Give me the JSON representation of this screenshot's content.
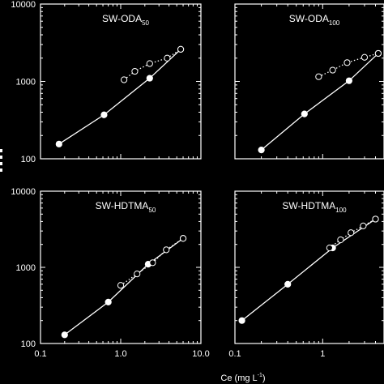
{
  "chart_data": {
    "type": "scatter",
    "xlabel": "Ce (mg L",
    "xlabel_sup": "-1",
    "xlabel_close": ")",
    "ylabel": "",
    "log_x": true,
    "log_y": true,
    "panels": [
      {
        "title": "SW-ODA",
        "title_sub": "50",
        "xlim": [
          0.1,
          10
        ],
        "ylim": [
          100,
          10000
        ],
        "y_ticks": [
          "10000",
          "1000",
          "100"
        ],
        "x_ticks": [],
        "series": [
          {
            "marker": "filled",
            "line": "solid",
            "points": [
              [
                0.17,
                155
              ],
              [
                0.62,
                370
              ],
              [
                2.3,
                1100
              ],
              [
                5.6,
                2600
              ]
            ]
          },
          {
            "marker": "open",
            "line": "dotted",
            "points": [
              [
                1.1,
                1050
              ],
              [
                1.5,
                1350
              ],
              [
                2.3,
                1700
              ],
              [
                3.8,
                2000
              ],
              [
                5.6,
                2600
              ]
            ]
          }
        ]
      },
      {
        "title": "SW-ODA",
        "title_sub": "100",
        "xlim": [
          0.1,
          5
        ],
        "ylim": [
          100,
          10000
        ],
        "y_ticks": [],
        "x_ticks": [],
        "series": [
          {
            "marker": "filled",
            "line": "solid",
            "points": [
              [
                0.2,
                130
              ],
              [
                0.62,
                380
              ],
              [
                2.0,
                1020
              ],
              [
                4.3,
                2300
              ]
            ]
          },
          {
            "marker": "open",
            "line": "dotted",
            "points": [
              [
                0.9,
                1150
              ],
              [
                1.3,
                1400
              ],
              [
                1.9,
                1750
              ],
              [
                3.0,
                2050
              ],
              [
                4.3,
                2300
              ]
            ]
          }
        ]
      },
      {
        "title": "SW-HDTMA",
        "title_sub": "50",
        "xlim": [
          0.1,
          10
        ],
        "ylim": [
          100,
          10000
        ],
        "y_ticks": [
          "10000",
          "1000",
          "100"
        ],
        "x_ticks": [
          "0.1",
          "1.0",
          "10.0"
        ],
        "series": [
          {
            "marker": "filled",
            "line": "solid",
            "points": [
              [
                0.2,
                130
              ],
              [
                0.7,
                350
              ],
              [
                2.2,
                1100
              ],
              [
                6.0,
                2400
              ]
            ]
          },
          {
            "marker": "open",
            "line": "dotted",
            "points": [
              [
                1.0,
                580
              ],
              [
                1.6,
                820
              ],
              [
                2.5,
                1150
              ],
              [
                3.7,
                1700
              ],
              [
                6.0,
                2400
              ]
            ]
          }
        ]
      },
      {
        "title": "SW-HDTMA",
        "title_sub": "100",
        "xlim": [
          0.1,
          5
        ],
        "ylim": [
          100,
          10000
        ],
        "y_ticks": [],
        "x_ticks": [
          "0.1",
          "1"
        ],
        "series": [
          {
            "marker": "filled",
            "line": "solid",
            "points": [
              [
                0.12,
                200
              ],
              [
                0.4,
                600
              ],
              [
                1.3,
                1800
              ],
              [
                4.0,
                4300
              ]
            ]
          },
          {
            "marker": "open",
            "line": "dotted",
            "points": [
              [
                1.2,
                1800
              ],
              [
                1.6,
                2300
              ],
              [
                2.1,
                2850
              ],
              [
                2.9,
                3500
              ],
              [
                4.0,
                4300
              ]
            ]
          }
        ]
      }
    ]
  }
}
